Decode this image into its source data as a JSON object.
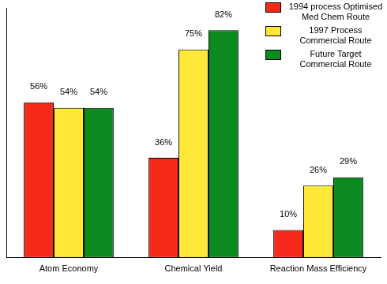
{
  "chart_data": {
    "type": "bar",
    "categories": [
      "Atom Economy",
      "Chemical Yield",
      "Reaction Mass Efficiency"
    ],
    "series": [
      {
        "name": "1994 process Optimised Med Chem Route",
        "color": "#f52a1a",
        "values": [
          56,
          36,
          10
        ],
        "value_labels": [
          "56%",
          "36%",
          "10%"
        ]
      },
      {
        "name": "1997 Process Commercial Route",
        "color": "#ffe838",
        "values": [
          54,
          75,
          26
        ],
        "value_labels": [
          "54%",
          "75%",
          "26%"
        ]
      },
      {
        "name": "Future Target Commercial Route",
        "color": "#0c8a20",
        "values": [
          54,
          82,
          29
        ],
        "value_labels": [
          "54%",
          "82%",
          "29%"
        ]
      }
    ],
    "ylim": [
      0,
      90
    ],
    "grid": false,
    "legend": "top-right",
    "data_labels": true,
    "tick_labels": "x"
  }
}
